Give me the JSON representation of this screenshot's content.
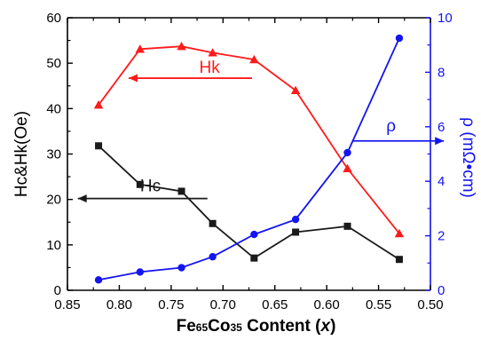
{
  "chart_data": {
    "type": "line",
    "title": "",
    "xlabel_parts": [
      {
        "t": "Fe",
        "sub": false
      },
      {
        "t": "65",
        "sub": true
      },
      {
        "t": "Co",
        "sub": false
      },
      {
        "t": "35",
        "sub": true
      },
      {
        "t": " Content (",
        "sub": false
      },
      {
        "t": "x",
        "sub": false,
        "italic": true
      },
      {
        "t": ")",
        "sub": false
      }
    ],
    "xlabel": "Fe65Co35 Content (x)",
    "ylabel_left": "Hc&Hk(Oe)",
    "ylabel_right": "ρ  (mΩ•cm)",
    "xlim": [
      0.85,
      0.5
    ],
    "x_reversed": true,
    "ylim_left": [
      0,
      60
    ],
    "ylim_right": [
      0,
      10
    ],
    "x_ticks": [
      "0.85",
      "0.80",
      "0.75",
      "0.70",
      "0.65",
      "0.60",
      "0.55",
      "0.50"
    ],
    "y_left_ticks": [
      "0",
      "10",
      "20",
      "30",
      "40",
      "50",
      "60"
    ],
    "y_right_ticks": [
      "0",
      "2",
      "4",
      "6",
      "8",
      "10"
    ],
    "grid": false,
    "legend": "none",
    "annotations": {
      "hk_label": "Hk",
      "hc_label": "Hc",
      "rho_label": "ρ"
    },
    "colors": {
      "hk": "#ff1a1a",
      "hc": "#1a1a1a",
      "rho": "#1414f0",
      "right_axis": "#1414f0"
    },
    "series": [
      {
        "id": "hk",
        "axis": "left",
        "marker": "triangle",
        "x": [
          0.82,
          0.78,
          0.74,
          0.71,
          0.67,
          0.63,
          0.58,
          0.53
        ],
        "y": [
          40.8,
          53.1,
          53.7,
          52.3,
          50.8,
          44.0,
          26.8,
          12.5
        ]
      },
      {
        "id": "hc",
        "axis": "left",
        "marker": "square",
        "x": [
          0.82,
          0.78,
          0.74,
          0.71,
          0.67,
          0.63,
          0.58,
          0.53
        ],
        "y": [
          31.8,
          23.3,
          21.8,
          14.7,
          7.1,
          12.8,
          14.1,
          6.8
        ]
      },
      {
        "id": "rho",
        "axis": "right",
        "marker": "circle",
        "x": [
          0.82,
          0.78,
          0.74,
          0.71,
          0.67,
          0.63,
          0.58,
          0.53
        ],
        "y": [
          0.38,
          0.67,
          0.83,
          1.23,
          2.05,
          2.6,
          5.05,
          9.25
        ]
      }
    ]
  }
}
